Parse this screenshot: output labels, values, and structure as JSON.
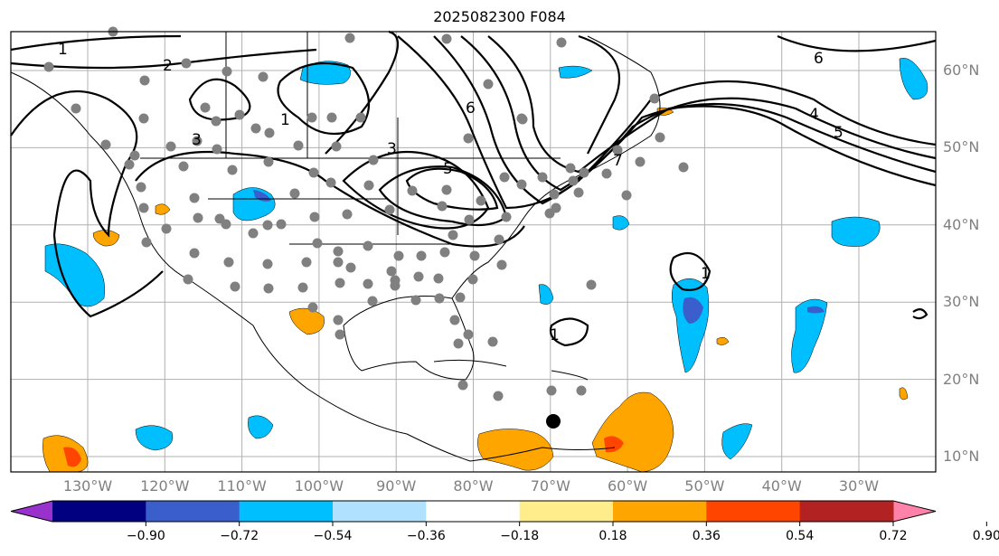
{
  "title": "2025082300 F084",
  "lat_labels": [
    "60°N",
    "50°N",
    "40°N",
    "30°N",
    "20°N",
    "10°N"
  ],
  "lon_labels": [
    "130°W",
    "120°W",
    "110°W",
    "100°W",
    "90°W",
    "80°W",
    "70°W",
    "60°W",
    "50°W",
    "40°W",
    "30°W"
  ],
  "contour_labels": [
    "1",
    "2",
    "3",
    "3",
    "5",
    "6",
    "6",
    "4",
    "5",
    "7",
    "1",
    "1",
    "1"
  ],
  "colorbar": {
    "ticks": [
      "−0.90",
      "−0.72",
      "−0.54",
      "−0.36",
      "−0.18",
      "0.18",
      "0.36",
      "0.54",
      "0.72",
      "0.90"
    ],
    "colors": [
      "#9932cc",
      "#000080",
      "#3a5fcd",
      "#00bfff",
      "#b0e2ff",
      "#ffffff",
      "#ffec8b",
      "#ffa500",
      "#ff4500",
      "#b22222",
      "#ff82ab"
    ]
  },
  "colors": {
    "grid": "#b0b0b0",
    "station": "#808080",
    "positive": "#ffa500",
    "negative": "#00bfff",
    "strong_negative": "#3a5fcd",
    "strong_positive": "#ff4500"
  }
}
